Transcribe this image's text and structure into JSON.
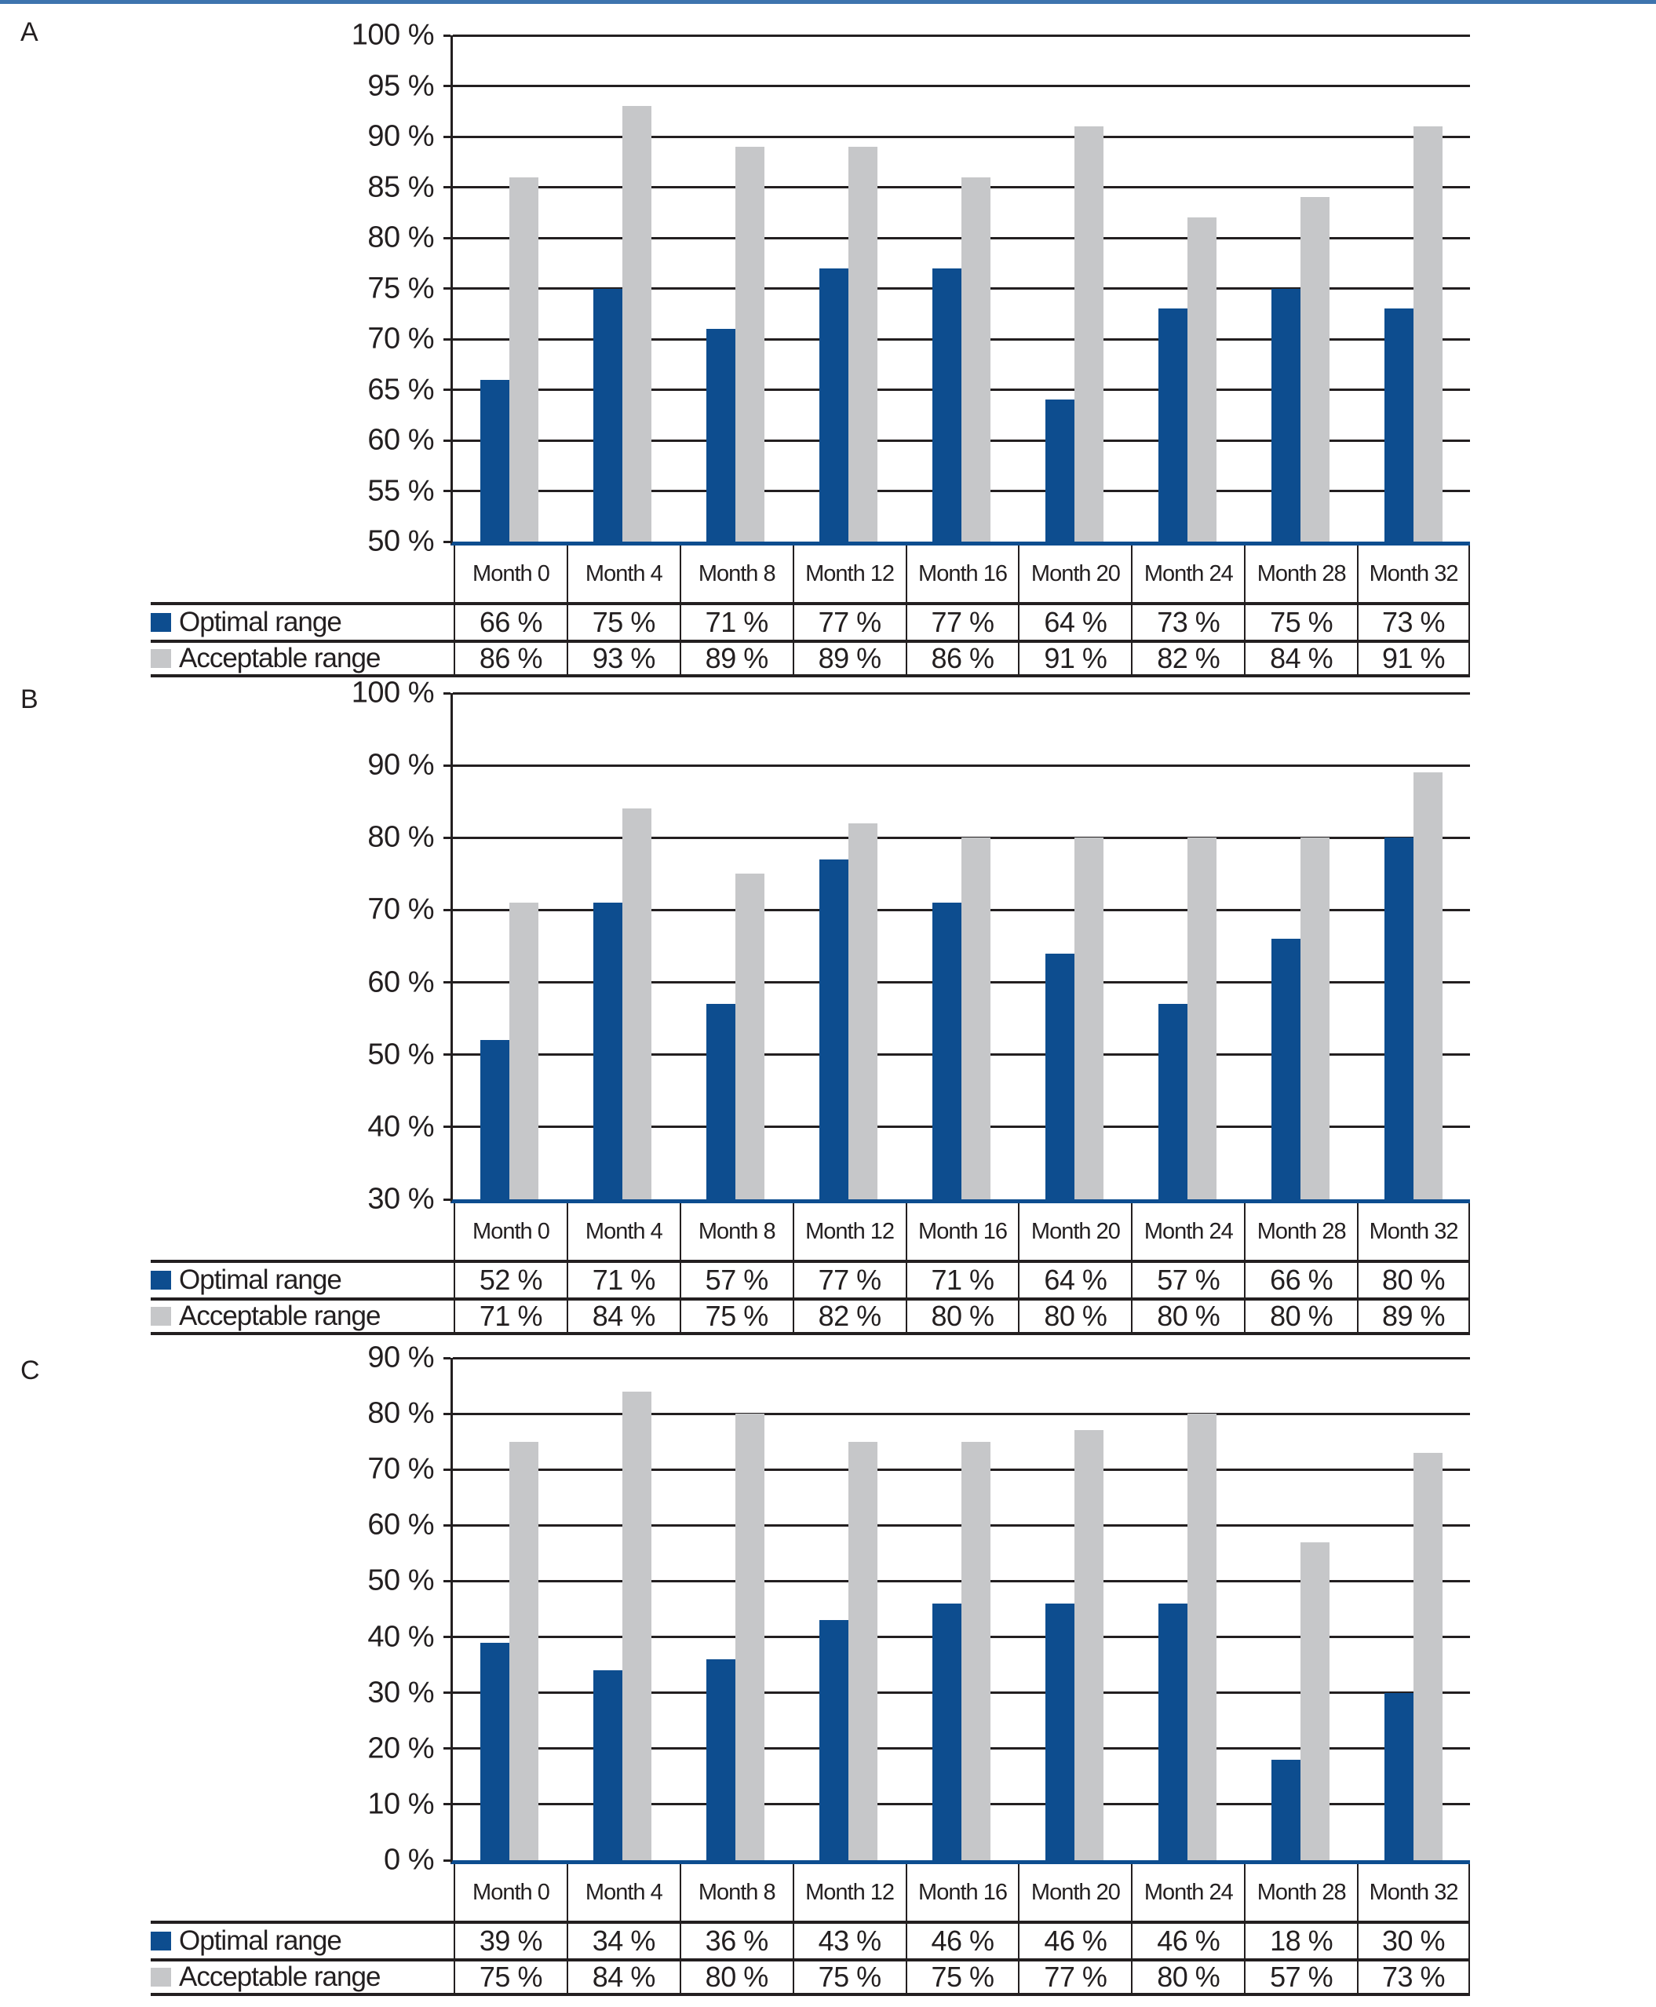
{
  "figure": {
    "panels": [
      "A",
      "B",
      "C"
    ],
    "top_bar_color": "#3e74ae"
  },
  "format": {
    "value_suffix": " %"
  },
  "legend": {
    "optimal_label": "Optimal range",
    "acceptable_label": "Acceptable range",
    "optimal_color": "#0d4d8f",
    "acceptable_color": "#c6c7c9"
  },
  "chart_data": [
    {
      "panel": "A",
      "type": "bar",
      "categories": [
        "Month 0",
        "Month 4",
        "Month 8",
        "Month 12",
        "Month 16",
        "Month 20",
        "Month 24",
        "Month 28",
        "Month 32"
      ],
      "series": [
        {
          "name": "Optimal range",
          "color": "#0d4d8f",
          "values": [
            66,
            75,
            71,
            77,
            77,
            64,
            73,
            75,
            73
          ]
        },
        {
          "name": "Acceptable range",
          "color": "#c6c7c9",
          "values": [
            86,
            93,
            89,
            89,
            86,
            91,
            82,
            84,
            91
          ]
        }
      ],
      "ylim": [
        50,
        100
      ],
      "ystep": 5,
      "ytick_labels": [
        "100 %",
        "95 %",
        "90 %",
        "85 %",
        "80 %",
        "75 %",
        "70 %",
        "65 %",
        "60 %",
        "55 %",
        "50 %"
      ],
      "grid": true,
      "legend_position": "table-below-left"
    },
    {
      "panel": "B",
      "type": "bar",
      "categories": [
        "Month 0",
        "Month 4",
        "Month 8",
        "Month 12",
        "Month 16",
        "Month 20",
        "Month 24",
        "Month 28",
        "Month 32"
      ],
      "series": [
        {
          "name": "Optimal range",
          "color": "#0d4d8f",
          "values": [
            52,
            71,
            57,
            77,
            71,
            64,
            57,
            66,
            80
          ]
        },
        {
          "name": "Acceptable range",
          "color": "#c6c7c9",
          "values": [
            71,
            84,
            75,
            82,
            80,
            80,
            80,
            80,
            89
          ]
        }
      ],
      "ylim": [
        30,
        100
      ],
      "ystep": 10,
      "ytick_labels": [
        "100 %",
        "90 %",
        "80 %",
        "70 %",
        "60 %",
        "50 %",
        "40 %",
        "30 %"
      ],
      "grid": true,
      "legend_position": "table-below-left"
    },
    {
      "panel": "C",
      "type": "bar",
      "categories": [
        "Month 0",
        "Month 4",
        "Month 8",
        "Month 12",
        "Month 16",
        "Month 20",
        "Month 24",
        "Month 28",
        "Month 32"
      ],
      "series": [
        {
          "name": "Optimal range",
          "color": "#0d4d8f",
          "values": [
            39,
            34,
            36,
            43,
            46,
            46,
            46,
            18,
            30
          ]
        },
        {
          "name": "Acceptable range",
          "color": "#c6c7c9",
          "values": [
            75,
            84,
            80,
            75,
            75,
            77,
            80,
            57,
            73
          ]
        }
      ],
      "ylim": [
        0,
        90
      ],
      "ystep": 10,
      "ytick_labels": [
        "90 %",
        "80 %",
        "70 %",
        "60 %",
        "50 %",
        "40 %",
        "30 %",
        "20 %",
        "10 %",
        "0 %"
      ],
      "grid": true,
      "legend_position": "table-below-left"
    }
  ]
}
